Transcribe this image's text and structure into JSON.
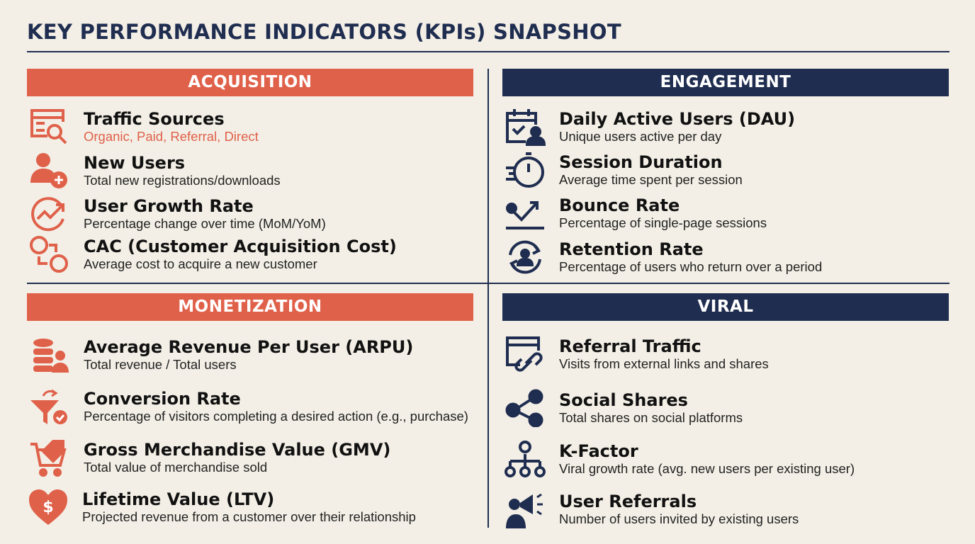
{
  "title": "KEY PERFORMANCE INDICATORS (KPIs) SNAPSHOT",
  "colors": {
    "coral": "#e0614a",
    "navy": "#1f2d50",
    "background": "#f3efe6"
  },
  "sections": [
    {
      "name": "ACQUISITION",
      "items": [
        {
          "icon": "traffic-search-icon",
          "title": "Traffic Sources",
          "desc": "Organic, Paid, Referral, Direct"
        },
        {
          "icon": "user-add-icon",
          "title": "New Users",
          "desc": "Total new registrations/downloads"
        },
        {
          "icon": "growth-arrow-icon",
          "title": "User Growth Rate",
          "desc": "Percentage change over time (MoM/YoM)"
        },
        {
          "icon": "dollar-user-icon",
          "title": "CAC (Customer Acquisition Cost)",
          "desc": "Average cost to acquire a new customer"
        }
      ]
    },
    {
      "name": "ENGAGEMENT",
      "items": [
        {
          "icon": "calendar-user-icon",
          "title": "Daily Active Users (DAU)",
          "desc": "Unique users active per day"
        },
        {
          "icon": "stopwatch-icon",
          "title": "Session Duration",
          "desc": "Average time spent per session"
        },
        {
          "icon": "bounce-arrow-icon",
          "title": "Bounce Rate",
          "desc": "Percentage of single-page sessions"
        },
        {
          "icon": "retention-cycle-icon",
          "title": "Retention Rate",
          "desc": "Percentage of users who return over a period"
        }
      ]
    },
    {
      "name": "MONETIZATION",
      "items": [
        {
          "icon": "coins-user-icon",
          "title": "Average Revenue Per User (ARPU)",
          "desc": "Total revenue / Total users"
        },
        {
          "icon": "funnel-check-icon",
          "title": "Conversion Rate",
          "desc": "Percentage of visitors completing a desired action (e.g., purchase)"
        },
        {
          "icon": "cart-tag-icon",
          "title": "Gross Merchandise Value (GMV)",
          "desc": "Total value of merchandise sold"
        },
        {
          "icon": "heart-dollar-icon",
          "title": "Lifetime Value (LTV)",
          "desc": "Projected revenue from a customer over their relationship"
        }
      ]
    },
    {
      "name": "VIRAL",
      "items": [
        {
          "icon": "browser-link-icon",
          "title": "Referral Traffic",
          "desc": "Visits from external links and shares"
        },
        {
          "icon": "social-share-icon",
          "title": "Social Shares",
          "desc": "Total shares on social platforms"
        },
        {
          "icon": "network-users-icon",
          "title": "K-Factor",
          "desc": "Viral growth rate (avg. new users per existing user)"
        },
        {
          "icon": "megaphone-user-icon",
          "title": "User Referrals",
          "desc": "Number of users invited by existing users"
        }
      ]
    }
  ]
}
